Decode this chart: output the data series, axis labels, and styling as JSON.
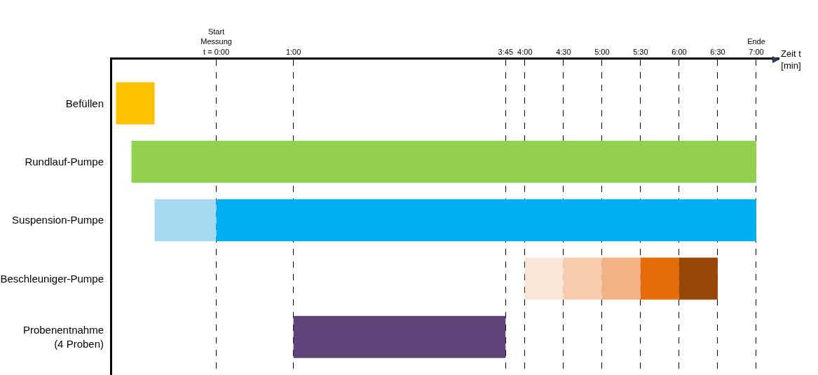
{
  "chart_data": {
    "type": "bar",
    "orientation": "horizontal",
    "xlabel": "Zeit t\n[min]",
    "categories": [
      "Befüllen",
      "Rundlauf-Pumpe",
      "Suspension-Pumpe",
      "Beschleuniger-Pumpe",
      "Probenentnahme\n(4 Proben)"
    ],
    "series": [
      {
        "values": [
          0.5,
          8.1,
          0.8,
          0.5,
          2.75
        ],
        "base": [
          -1.3,
          -1.1,
          -0.8,
          4,
          1
        ],
        "colors": [
          "#ffc000",
          "#92d050",
          "#a9d8f2",
          "#fbe5d6",
          "#5e4479"
        ]
      },
      {
        "values": [
          null,
          null,
          7,
          0.5,
          null
        ],
        "base": [
          null,
          null,
          0,
          4.5,
          null
        ],
        "colors": [
          null,
          null,
          "#00b0f0",
          "#f8cbad",
          null
        ]
      },
      {
        "values": [
          null,
          null,
          null,
          0.5,
          null
        ],
        "base": [
          null,
          null,
          null,
          5,
          null
        ],
        "colors": [
          null,
          null,
          null,
          "#f4b183",
          null
        ]
      },
      {
        "values": [
          null,
          null,
          null,
          0.5,
          null
        ],
        "base": [
          null,
          null,
          null,
          5.5,
          null
        ],
        "colors": [
          null,
          null,
          null,
          "#e46c0a",
          null
        ]
      },
      {
        "values": [
          null,
          null,
          null,
          0.5,
          null
        ],
        "base": [
          null,
          null,
          null,
          6,
          null
        ],
        "colors": [
          null,
          null,
          null,
          "#974706",
          null
        ]
      }
    ],
    "xlim": [
      -1.35,
      7.3
    ],
    "xticks": [
      {
        "value": 0,
        "label": "Start\nMessung\nt = 0:00"
      },
      {
        "value": 1,
        "label": "1:00"
      },
      {
        "value": 3.75,
        "label": "3:45"
      },
      {
        "value": 4,
        "label": "4:00"
      },
      {
        "value": 4.5,
        "label": "4:30"
      },
      {
        "value": 5,
        "label": "5:00"
      },
      {
        "value": 5.5,
        "label": "5:30"
      },
      {
        "value": 6,
        "label": "6:00"
      },
      {
        "value": 6.5,
        "label": "6:30"
      },
      {
        "value": 7,
        "label": "Ende\n7:00"
      }
    ],
    "grid": "x",
    "line_style": "dashed"
  }
}
